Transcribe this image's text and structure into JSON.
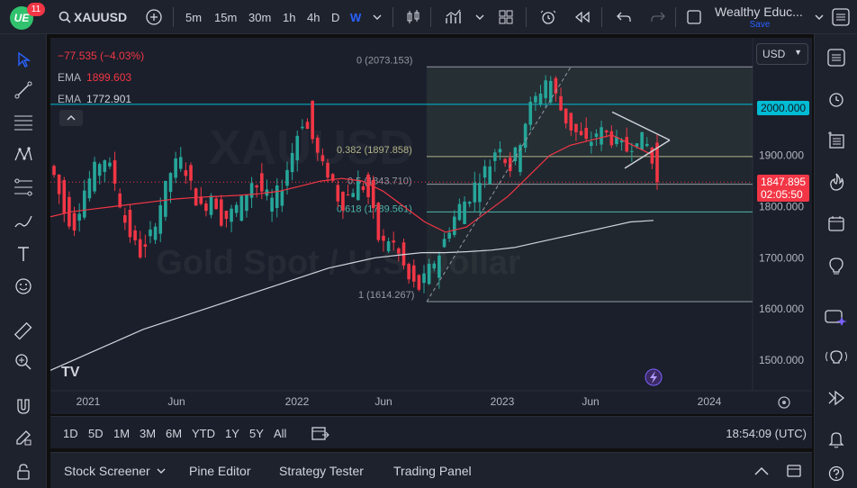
{
  "toolbar": {
    "logo_text": "UE",
    "badge": "11",
    "symbol": "XAUUSD",
    "timeframes": [
      "5m",
      "15m",
      "30m",
      "1h",
      "4h",
      "D",
      "W"
    ],
    "active_timeframe": "W",
    "account_name": "Wealthy Educ...",
    "save_label": "Save"
  },
  "legend": {
    "change": "−77.535 (−4.03%)",
    "ema1_label": "EMA",
    "ema1_value": "1899.603",
    "ema2_label": "EMA",
    "ema2_value": "1772.901"
  },
  "watermark": {
    "text": "Gold Spot / U.S. Dollar",
    "ticker": "XAUUSD"
  },
  "currency": "USD",
  "price_axis": {
    "ticks": [
      "2000.000",
      "1900.000",
      "1800.000",
      "1700.000",
      "1600.000",
      "1500.000"
    ],
    "highlight_level": "2000.000",
    "current_price": "1847.895",
    "countdown": "02:05:50"
  },
  "time_axis": {
    "ticks": [
      "2021",
      "Jun",
      "2022",
      "Jun",
      "2023",
      "Jun",
      "2024"
    ]
  },
  "fib": {
    "level_0": "0 (2073.153)",
    "level_382": "0.382 (1897.858)",
    "level_5": "0.5 (1843.710)",
    "level_618": "0.618 (1789.561)",
    "level_1": "1 (1614.267)"
  },
  "range_buttons": [
    "1D",
    "5D",
    "1M",
    "3M",
    "6M",
    "YTD",
    "1Y",
    "5Y",
    "All"
  ],
  "clock": "18:54:09 (UTC)",
  "panels": [
    "Stock Screener",
    "Pine Editor",
    "Strategy Tester",
    "Trading Panel"
  ],
  "colors": {
    "up": "#26a69a",
    "down": "#f23645",
    "ema_fast": "#f23645",
    "ema_slow": "#d1d4dc",
    "accent": "#2962ff",
    "level_line": "#00bcd4"
  },
  "chart_data": {
    "type": "candlestick",
    "ylim": [
      1440,
      2130
    ],
    "xlabel": "",
    "ylabel": "",
    "x_ticks": [
      "2021",
      "Jun",
      "2022",
      "Jun",
      "2023",
      "Jun",
      "2024"
    ],
    "series": [
      {
        "name": "EMA",
        "values": [
          1780,
          1790,
          1795,
          1800,
          1805,
          1810,
          1815,
          1818,
          1820,
          1822,
          1825,
          1830,
          1840,
          1850,
          1855,
          1850,
          1830,
          1800,
          1770,
          1750,
          1760,
          1790,
          1820,
          1860,
          1900,
          1920,
          1930,
          1940,
          1920,
          1900
        ]
      },
      {
        "name": "EMA",
        "values": [
          1480,
          1500,
          1520,
          1540,
          1560,
          1575,
          1590,
          1605,
          1620,
          1635,
          1650,
          1665,
          1680,
          1690,
          1700,
          1705,
          1710,
          1710,
          1712,
          1715,
          1720,
          1730,
          1740,
          1750,
          1760,
          1770,
          1773
        ]
      }
    ],
    "fib_levels": [
      {
        "ratio": 0,
        "price": 2073.153
      },
      {
        "ratio": 0.382,
        "price": 1897.858
      },
      {
        "ratio": 0.5,
        "price": 1843.71
      },
      {
        "ratio": 0.618,
        "price": 1789.561
      },
      {
        "ratio": 1,
        "price": 1614.267
      }
    ],
    "horizontal_level": 2000,
    "last_price": 1847.895
  }
}
